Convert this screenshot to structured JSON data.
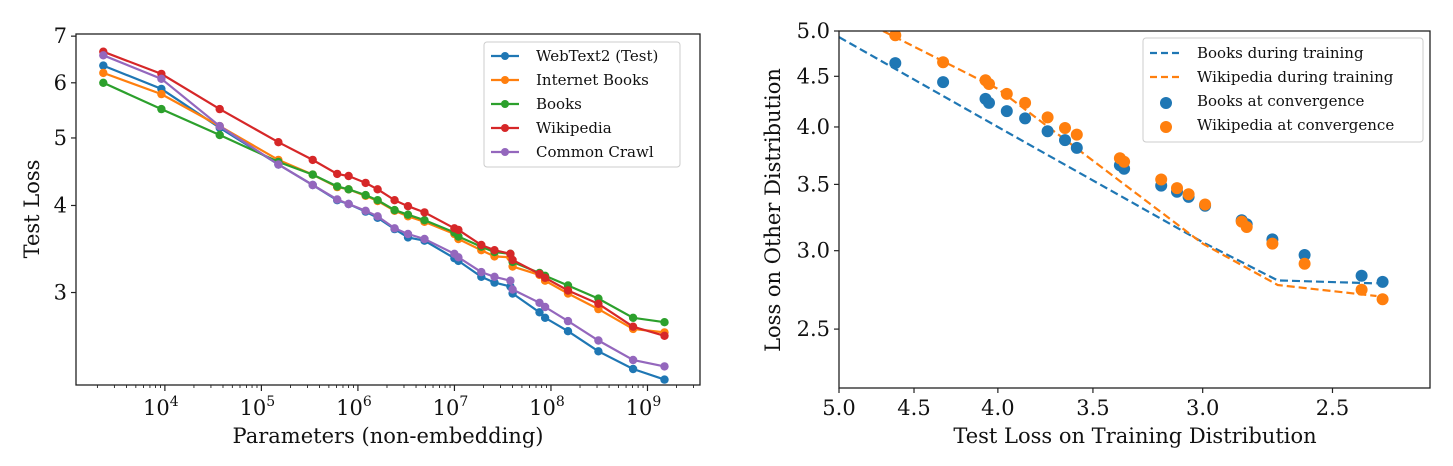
{
  "chart_data": [
    {
      "type": "line",
      "title": "",
      "xlabel": "Parameters (non-embedding)",
      "ylabel": "Test Loss",
      "xscale": "log",
      "yscale": "log",
      "xlim": [
        1200,
        3500000000
      ],
      "ylim": [
        2.21,
        7.05
      ],
      "x_ticks": [
        {
          "value": 10000,
          "base": "10",
          "exp": "4"
        },
        {
          "value": 100000,
          "base": "10",
          "exp": "5"
        },
        {
          "value": 1000000,
          "base": "10",
          "exp": "6"
        },
        {
          "value": 10000000,
          "base": "10",
          "exp": "7"
        },
        {
          "value": 100000000,
          "base": "10",
          "exp": "8"
        },
        {
          "value": 1000000000,
          "base": "10",
          "exp": "9"
        }
      ],
      "y_ticks": [
        {
          "value": 3,
          "label": "3"
        },
        {
          "value": 4,
          "label": "4"
        },
        {
          "value": 5,
          "label": "5"
        },
        {
          "value": 6,
          "label": "6"
        },
        {
          "value": 7,
          "label": "7"
        }
      ],
      "legend_position": "top-right",
      "x": [
        2300,
        9200,
        37000,
        150000,
        340000,
        610000,
        800000,
        1200000,
        1600000,
        2400000,
        3300000,
        4900000,
        10000000,
        11000000,
        19000000,
        26000000,
        38000000,
        40000000,
        76000000,
        87000000,
        150000000,
        310000000,
        710000000,
        1500000000
      ],
      "series": [
        {
          "name": "WebText2 (Test)",
          "color": "#1f77b4",
          "values": [
            6.35,
            5.88,
            5.17,
            4.58,
            4.28,
            4.07,
            4.02,
            3.92,
            3.84,
            3.7,
            3.6,
            3.56,
            3.36,
            3.33,
            3.16,
            3.1,
            3.06,
            2.99,
            2.81,
            2.76,
            2.64,
            2.47,
            2.33,
            2.25
          ]
        },
        {
          "name": "Internet Books",
          "color": "#ff7f0e",
          "values": [
            6.2,
            5.78,
            5.2,
            4.65,
            4.43,
            4.25,
            4.22,
            4.13,
            4.06,
            3.93,
            3.86,
            3.79,
            3.64,
            3.58,
            3.45,
            3.38,
            3.37,
            3.27,
            3.18,
            3.12,
            2.99,
            2.84,
            2.66,
            2.63
          ]
        },
        {
          "name": "Books",
          "color": "#2ca02c",
          "values": [
            6.0,
            5.5,
            5.05,
            4.62,
            4.43,
            4.26,
            4.22,
            4.14,
            4.07,
            3.94,
            3.88,
            3.81,
            3.66,
            3.61,
            3.49,
            3.43,
            3.41,
            3.32,
            3.2,
            3.17,
            3.07,
            2.94,
            2.76,
            2.72
          ]
        },
        {
          "name": "Wikipedia",
          "color": "#d62728",
          "values": [
            6.65,
            6.18,
            5.5,
            4.93,
            4.65,
            4.44,
            4.41,
            4.31,
            4.22,
            4.07,
            3.99,
            3.91,
            3.71,
            3.69,
            3.51,
            3.45,
            3.41,
            3.34,
            3.19,
            3.15,
            3.02,
            2.89,
            2.68,
            2.6
          ]
        },
        {
          "name": "Common Crawl",
          "color": "#9467bd",
          "values": [
            6.57,
            6.08,
            5.2,
            4.58,
            4.28,
            4.08,
            4.02,
            3.93,
            3.86,
            3.71,
            3.64,
            3.58,
            3.41,
            3.37,
            3.21,
            3.16,
            3.12,
            3.03,
            2.9,
            2.86,
            2.73,
            2.56,
            2.4,
            2.35
          ]
        }
      ]
    },
    {
      "type": "scatter",
      "title": "",
      "xlabel": "Test Loss on Training Distribution",
      "ylabel": "Loss on Other Distribution",
      "xscale": "log",
      "yscale": "log",
      "x_inverted": true,
      "xlim": [
        5.0,
        2.18
      ],
      "ylim": [
        2.18,
        5.0
      ],
      "x_ticks": [
        {
          "value": 5.0,
          "label": "5.0"
        },
        {
          "value": 4.5,
          "label": "4.5"
        },
        {
          "value": 4.0,
          "label": "4.0"
        },
        {
          "value": 3.5,
          "label": "3.5"
        },
        {
          "value": 3.0,
          "label": "3.0"
        },
        {
          "value": 2.5,
          "label": "2.5"
        }
      ],
      "y_ticks": [
        {
          "value": 2.5,
          "label": "2.5"
        },
        {
          "value": 3.0,
          "label": "3.0"
        },
        {
          "value": 3.5,
          "label": "3.5"
        },
        {
          "value": 4.0,
          "label": "4.0"
        },
        {
          "value": 4.5,
          "label": "4.5"
        },
        {
          "value": 5.0,
          "label": "5.0"
        }
      ],
      "legend_position": "top-right",
      "series": [
        {
          "name": "Books during training",
          "color": "#1f77b4",
          "style": "dashed",
          "x": [
            5.0,
            4.0,
            3.0,
            2.7,
            2.35
          ],
          "y": [
            4.93,
            4.0,
            3.06,
            2.8,
            2.78
          ]
        },
        {
          "name": "Wikipedia during training",
          "color": "#ff7f0e",
          "style": "dashed",
          "x": [
            4.7,
            4.0,
            3.0,
            2.7,
            2.35
          ],
          "y": [
            5.0,
            4.37,
            3.05,
            2.77,
            2.7
          ]
        },
        {
          "name": "Books at convergence",
          "color": "#1f77b4",
          "style": "marker",
          "x": [
            4.62,
            4.32,
            4.07,
            4.05,
            3.95,
            3.85,
            3.73,
            3.64,
            3.58,
            3.37,
            3.35,
            3.18,
            3.11,
            3.06,
            2.99,
            2.84,
            2.82,
            2.72,
            2.6,
            2.4,
            2.33
          ],
          "y": [
            4.64,
            4.44,
            4.27,
            4.23,
            4.15,
            4.08,
            3.96,
            3.88,
            3.81,
            3.66,
            3.63,
            3.49,
            3.44,
            3.4,
            3.33,
            3.22,
            3.19,
            3.08,
            2.97,
            2.83,
            2.79
          ]
        },
        {
          "name": "Wikipedia at convergence",
          "color": "#ff7f0e",
          "style": "marker",
          "x": [
            4.62,
            4.32,
            4.07,
            4.05,
            3.95,
            3.85,
            3.73,
            3.64,
            3.58,
            3.37,
            3.35,
            3.18,
            3.11,
            3.06,
            2.99,
            2.84,
            2.82,
            2.72,
            2.6,
            2.4,
            2.33
          ],
          "y": [
            4.95,
            4.65,
            4.46,
            4.42,
            4.32,
            4.23,
            4.09,
            3.99,
            3.93,
            3.72,
            3.69,
            3.54,
            3.47,
            3.42,
            3.34,
            3.21,
            3.17,
            3.05,
            2.91,
            2.74,
            2.68
          ]
        }
      ]
    }
  ]
}
